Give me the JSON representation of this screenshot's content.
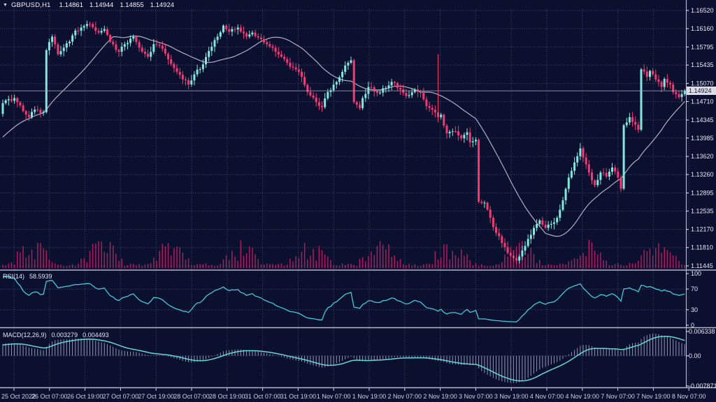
{
  "colors": {
    "background": "#0c102f",
    "grid": "#4d5378",
    "bull": "#85e6dd",
    "bear": "#f23b74",
    "volume": "#a81e5c",
    "ma_line": "#b3adc4",
    "rsi_line": "#46c8d8",
    "macd_hist": "#8e96b0",
    "macd_signal": "#66d5da",
    "panel_border": "#b2b6c8",
    "axis_text": "#e6e9f4",
    "time_text": "#cdd2e3",
    "current_price_line": "#a9adc2",
    "price_box_bg": "#dcdde6",
    "price_box_text": "#101238"
  },
  "chart_data": {
    "type": "candlestick",
    "symbol": "GBPUSD",
    "timeframe": "H1",
    "header": {
      "symbol_label": "GBPUSD,H1",
      "open": "1.14861",
      "high": "1.14944",
      "low": "1.14855",
      "close": "1.14924"
    },
    "price_axis": {
      "labels": [
        "1.16520",
        "1.16160",
        "1.15795",
        "1.15435",
        "1.15070",
        "1.14710",
        "1.14345",
        "1.13985",
        "1.13620",
        "1.13260",
        "1.12895",
        "1.12535",
        "1.12170",
        "1.11810",
        "1.11445"
      ],
      "current": "1.14924",
      "max": 1.1652,
      "min": 1.11445
    },
    "time_axis": {
      "labels": [
        "25 Oct 2022",
        "26 Oct 07:00",
        "26 Oct 19:00",
        "27 Oct 07:00",
        "27 Oct 19:00",
        "28 Oct 07:00",
        "28 Oct 19:00",
        "31 Oct 07:00",
        "31 Oct 19:00",
        "1 Nov 07:00",
        "1 Nov 19:00",
        "2 Nov 07:00",
        "2 Nov 19:00",
        "3 Nov 07:00",
        "3 Nov 19:00",
        "4 Nov 07:00",
        "4 Nov 19:00",
        "7 Nov 07:00",
        "7 Nov 19:00",
        "8 Nov 07:00"
      ]
    },
    "rsi": {
      "name": "RSI(14)",
      "value": "58.5939",
      "period": 14,
      "scale_labels": [
        "100",
        "70",
        "30",
        "0"
      ],
      "level_lines": [
        70,
        30
      ]
    },
    "macd": {
      "name": "MACD(12,26,9)",
      "value_main": "0.003279",
      "value_signal": "0.004493",
      "periods": [
        12,
        26,
        9
      ],
      "scale_labels": [
        "0.006338",
        "0.00",
        "-0.007871"
      ],
      "scale_max": 0.006338,
      "scale_min": -0.007871
    },
    "ma_period": 24,
    "candles": {
      "count": 236,
      "prehistory": {
        "count": 40,
        "start": 1.127,
        "end": 1.145
      },
      "wick_overrides": {
        "150": 1.1565
      },
      "keyframes": [
        [
          0,
          1.1468
        ],
        [
          4,
          1.1478
        ],
        [
          7,
          1.1452
        ],
        [
          9,
          1.144
        ],
        [
          11,
          1.1455
        ],
        [
          13,
          1.1448
        ],
        [
          14,
          1.145
        ],
        [
          15,
          1.1573
        ],
        [
          17,
          1.16
        ],
        [
          19,
          1.1565
        ],
        [
          21,
          1.1578
        ],
        [
          23,
          1.159
        ],
        [
          25,
          1.1612
        ],
        [
          27,
          1.1618
        ],
        [
          30,
          1.1625
        ],
        [
          33,
          1.1608
        ],
        [
          35,
          1.1615
        ],
        [
          37,
          1.159
        ],
        [
          40,
          1.157
        ],
        [
          42,
          1.1585
        ],
        [
          45,
          1.16
        ],
        [
          47,
          1.1578
        ],
        [
          50,
          1.156
        ],
        [
          52,
          1.1585
        ],
        [
          54,
          1.1582
        ],
        [
          57,
          1.1555
        ],
        [
          60,
          1.153
        ],
        [
          62,
          1.1515
        ],
        [
          64,
          1.1505
        ],
        [
          66,
          1.1525
        ],
        [
          69,
          1.1545
        ],
        [
          72,
          1.158
        ],
        [
          74,
          1.16
        ],
        [
          76,
          1.1622
        ],
        [
          78,
          1.161
        ],
        [
          81,
          1.1618
        ],
        [
          84,
          1.16
        ],
        [
          86,
          1.1608
        ],
        [
          89,
          1.1595
        ],
        [
          91,
          1.1585
        ],
        [
          93,
          1.1578
        ],
        [
          96,
          1.156
        ],
        [
          98,
          1.1548
        ],
        [
          101,
          1.1535
        ],
        [
          103,
          1.152
        ],
        [
          105,
          1.149
        ],
        [
          108,
          1.147
        ],
        [
          110,
          1.146
        ],
        [
          112,
          1.149
        ],
        [
          115,
          1.151
        ],
        [
          117,
          1.153
        ],
        [
          119,
          1.1548
        ],
        [
          120,
          1.1553
        ],
        [
          121,
          1.147
        ],
        [
          123,
          1.1458
        ],
        [
          124,
          1.1478
        ],
        [
          126,
          1.15
        ],
        [
          129,
          1.1488
        ],
        [
          132,
          1.1498
        ],
        [
          134,
          1.151
        ],
        [
          137,
          1.1495
        ],
        [
          139,
          1.1482
        ],
        [
          142,
          1.1495
        ],
        [
          144,
          1.1488
        ],
        [
          146,
          1.1462
        ],
        [
          148,
          1.1455
        ],
        [
          150,
          1.144
        ],
        [
          151,
          1.1445
        ],
        [
          153,
          1.1408
        ],
        [
          156,
          1.1412
        ],
        [
          158,
          1.1398
        ],
        [
          160,
          1.141
        ],
        [
          161,
          1.139
        ],
        [
          163,
          1.1395
        ],
        [
          164,
          1.1272
        ],
        [
          166,
          1.127
        ],
        [
          168,
          1.124
        ],
        [
          170,
          1.121
        ],
        [
          172,
          1.119
        ],
        [
          174,
          1.117
        ],
        [
          176,
          1.116
        ],
        [
          177,
          1.1155
        ],
        [
          179,
          1.1175
        ],
        [
          181,
          1.1198
        ],
        [
          183,
          1.122
        ],
        [
          185,
          1.1235
        ],
        [
          187,
          1.122
        ],
        [
          189,
          1.1228
        ],
        [
          191,
          1.124
        ],
        [
          193,
          1.1275
        ],
        [
          195,
          1.132
        ],
        [
          197,
          1.135
        ],
        [
          199,
          1.1378
        ],
        [
          200,
          1.136
        ],
        [
          202,
          1.133
        ],
        [
          204,
          1.1305
        ],
        [
          206,
          1.133
        ],
        [
          208,
          1.1322
        ],
        [
          210,
          1.134
        ],
        [
          212,
          1.132
        ],
        [
          213,
          1.1298
        ],
        [
          214,
          1.1424
        ],
        [
          216,
          1.144
        ],
        [
          218,
          1.1425
        ],
        [
          219,
          1.1415
        ],
        [
          220,
          1.1535
        ],
        [
          222,
          1.152
        ],
        [
          223,
          1.1532
        ],
        [
          225,
          1.1515
        ],
        [
          227,
          1.15
        ],
        [
          228,
          1.1516
        ],
        [
          230,
          1.1505
        ],
        [
          231,
          1.149
        ],
        [
          233,
          1.148
        ],
        [
          235,
          1.14924
        ]
      ]
    }
  }
}
